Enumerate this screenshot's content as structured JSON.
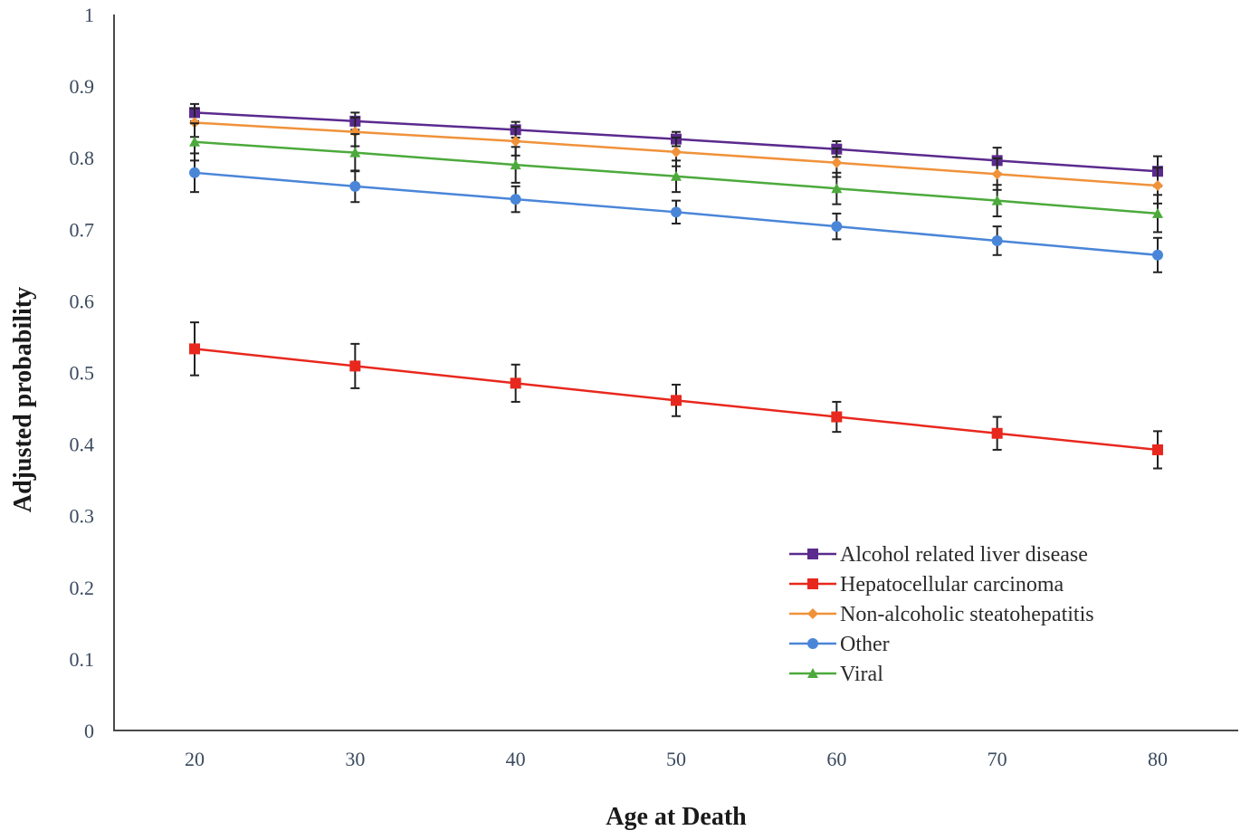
{
  "chart_data": {
    "type": "line",
    "title": "",
    "xlabel": "Age at Death",
    "ylabel": "Adjusted probability",
    "x": [
      20,
      30,
      40,
      50,
      60,
      70,
      80
    ],
    "x_ticks": [
      "20",
      "30",
      "40",
      "50",
      "60",
      "70",
      "80"
    ],
    "y_ticks": [
      "0",
      "0.1",
      "0.2",
      "0.3",
      "0.4",
      "0.5",
      "0.6",
      "0.7",
      "0.8",
      "0.9",
      "1"
    ],
    "ylim": [
      0,
      1
    ],
    "grid": false,
    "legend_position": "bottom-right",
    "series": [
      {
        "name": "Alcohol related liver disease",
        "color": "#5b2a8e",
        "marker": "square",
        "values": [
          0.863,
          0.851,
          0.839,
          0.826,
          0.812,
          0.796,
          0.781
        ],
        "error": [
          0.012,
          0.012,
          0.011,
          0.01,
          0.011,
          0.018,
          0.021
        ]
      },
      {
        "name": "Hepatocellular carcinoma",
        "color": "#e8281e",
        "marker": "square",
        "values": [
          0.533,
          0.509,
          0.485,
          0.461,
          0.438,
          0.415,
          0.392
        ],
        "error": [
          0.037,
          0.031,
          0.026,
          0.022,
          0.021,
          0.023,
          0.026
        ]
      },
      {
        "name": "Non-alcoholic steatohepatitis",
        "color": "#f0923a",
        "marker": "diamond",
        "values": [
          0.849,
          0.836,
          0.823,
          0.808,
          0.793,
          0.777,
          0.761
        ],
        "error": [
          0.02,
          0.02,
          0.02,
          0.02,
          0.02,
          0.022,
          0.025
        ]
      },
      {
        "name": "Other",
        "color": "#4a86d8",
        "marker": "circle",
        "values": [
          0.779,
          0.76,
          0.742,
          0.724,
          0.704,
          0.684,
          0.664
        ],
        "error": [
          0.027,
          0.022,
          0.018,
          0.016,
          0.018,
          0.02,
          0.024
        ]
      },
      {
        "name": "Viral",
        "color": "#4caa3c",
        "marker": "triangle",
        "values": [
          0.822,
          0.807,
          0.79,
          0.774,
          0.757,
          0.74,
          0.722
        ],
        "error": [
          0.026,
          0.026,
          0.025,
          0.022,
          0.022,
          0.022,
          0.026
        ]
      }
    ]
  }
}
